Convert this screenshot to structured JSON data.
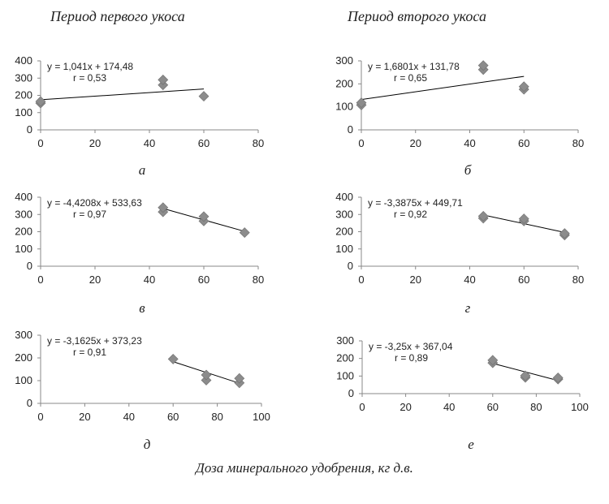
{
  "column_titles": {
    "left": "Период первого укоса",
    "right": "Период второго укоса"
  },
  "x_axis_label": "Доза минерального удобрения, кг д.в.",
  "chart_data": [
    {
      "type": "scatter",
      "panel_letter": "а",
      "equation": "y = 1,041x + 174,48",
      "r_text": "r = 0,53",
      "points": [
        [
          0,
          155
        ],
        [
          0,
          165
        ],
        [
          45,
          260
        ],
        [
          45,
          290
        ],
        [
          60,
          195
        ]
      ],
      "trend": {
        "slope": 1.041,
        "intercept": 174.48,
        "x_range": [
          0,
          60
        ]
      },
      "xlim": [
        0,
        80
      ],
      "ylim": [
        0,
        400
      ],
      "xticks": [
        "0",
        "20",
        "40",
        "60",
        "80"
      ],
      "yticks": [
        "0",
        "100",
        "200",
        "300",
        "400"
      ]
    },
    {
      "type": "scatter",
      "panel_letter": "б",
      "equation": "y = 1,6801x + 131,78",
      "r_text": "r = 0,65",
      "points": [
        [
          0,
          108
        ],
        [
          0,
          118
        ],
        [
          45,
          262
        ],
        [
          45,
          280
        ],
        [
          60,
          176
        ],
        [
          60,
          188
        ]
      ],
      "trend": {
        "slope": 1.6801,
        "intercept": 131.78,
        "x_range": [
          0,
          60
        ]
      },
      "xlim": [
        0,
        80
      ],
      "ylim": [
        0,
        300
      ],
      "xticks": [
        "0",
        "20",
        "40",
        "60",
        "80"
      ],
      "yticks": [
        "0",
        "100",
        "200",
        "300"
      ]
    },
    {
      "type": "scatter",
      "panel_letter": "в",
      "equation": "y = -4,4208x + 533,63",
      "r_text": "r = 0,97",
      "points": [
        [
          45,
          315
        ],
        [
          45,
          340
        ],
        [
          60,
          262
        ],
        [
          60,
          288
        ],
        [
          75,
          195
        ]
      ],
      "trend": {
        "slope": -4.4208,
        "intercept": 533.63,
        "x_range": [
          45,
          75
        ]
      },
      "xlim": [
        0,
        80
      ],
      "ylim": [
        0,
        400
      ],
      "xticks": [
        "0",
        "20",
        "40",
        "60",
        "80"
      ],
      "yticks": [
        "0",
        "100",
        "200",
        "300",
        "400"
      ]
    },
    {
      "type": "scatter",
      "panel_letter": "г",
      "equation": "y = -3,3875x + 449,71",
      "r_text": "r = 0,92",
      "points": [
        [
          45,
          278
        ],
        [
          45,
          290
        ],
        [
          60,
          262
        ],
        [
          60,
          275
        ],
        [
          75,
          180
        ],
        [
          75,
          190
        ]
      ],
      "trend": {
        "slope": -3.3875,
        "intercept": 449.71,
        "x_range": [
          45,
          75
        ]
      },
      "xlim": [
        0,
        80
      ],
      "ylim": [
        0,
        400
      ],
      "xticks": [
        "0",
        "20",
        "40",
        "60",
        "80"
      ],
      "yticks": [
        "0",
        "100",
        "200",
        "300",
        "400"
      ]
    },
    {
      "type": "scatter",
      "panel_letter": "д",
      "equation": "y = -3,1625x + 373,23",
      "r_text": "r = 0,91",
      "points": [
        [
          60,
          195
        ],
        [
          75,
          102
        ],
        [
          75,
          125
        ],
        [
          90,
          90
        ],
        [
          90,
          110
        ]
      ],
      "trend": {
        "slope": -3.1625,
        "intercept": 373.23,
        "x_range": [
          60,
          90
        ]
      },
      "xlim": [
        0,
        100
      ],
      "ylim": [
        0,
        300
      ],
      "xticks": [
        "0",
        "20",
        "40",
        "60",
        "80",
        "100"
      ],
      "yticks": [
        "0",
        "100",
        "200",
        "300"
      ]
    },
    {
      "type": "scatter",
      "panel_letter": "е",
      "equation": "y = -3,25x + 367,04",
      "r_text": "r = 0,89",
      "points": [
        [
          60,
          175
        ],
        [
          60,
          190
        ],
        [
          75,
          92
        ],
        [
          75,
          102
        ],
        [
          90,
          82
        ],
        [
          90,
          90
        ]
      ],
      "trend": {
        "slope": -3.25,
        "intercept": 367.04,
        "x_range": [
          60,
          90
        ]
      },
      "xlim": [
        0,
        100
      ],
      "ylim": [
        0,
        300
      ],
      "xticks": [
        "0",
        "20",
        "40",
        "60",
        "80",
        "100"
      ],
      "yticks": [
        "0",
        "100",
        "200",
        "300"
      ]
    }
  ]
}
